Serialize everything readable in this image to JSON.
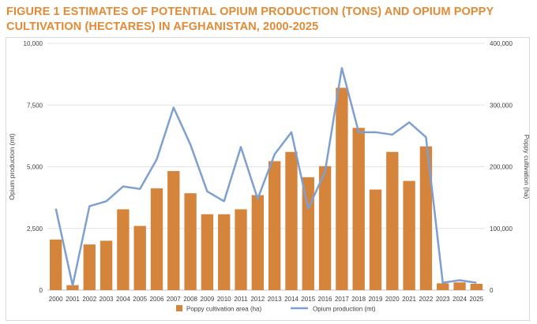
{
  "figure": {
    "title": "FIGURE 1 ESTIMATES OF POTENTIAL OPIUM PRODUCTION (TONS) AND OPIUM POPPY CULTIVATION (HECTARES) IN AFGHANISTAN, 2000-2025"
  },
  "chart_data": {
    "type": "bar+line",
    "title": "FIGURE 1 ESTIMATES OF POTENTIAL OPIUM PRODUCTION (TONS) AND OPIUM POPPY CULTIVATION (HECTARES) IN AFGHANISTAN, 2000-2025",
    "categories": [
      "2000",
      "2001",
      "2002",
      "2003",
      "2004",
      "2005",
      "2006",
      "2007",
      "2008",
      "2009",
      "2010",
      "2011",
      "2012",
      "2013",
      "2014",
      "2015",
      "2016",
      "2017",
      "2018",
      "2019",
      "2020",
      "2021",
      "2022",
      "2023",
      "2024",
      "2025"
    ],
    "ylabel_left": "Opium production (mt)",
    "ylabel_right": "Poppy cultivation (ha)",
    "ylim_left": [
      0,
      10000
    ],
    "ylim_right": [
      0,
      400000
    ],
    "yticks_left": [
      "0",
      "2,500",
      "5,000",
      "7,500",
      "10,000"
    ],
    "yticks_right": [
      "0",
      "100,000",
      "200,000",
      "300,000",
      "400,000"
    ],
    "series": [
      {
        "name": "Poppy cultivation area (ha)",
        "type": "bar",
        "axis": "right",
        "color": "#d5843b",
        "values": [
          82000,
          8000,
          74000,
          80000,
          131000,
          104000,
          165000,
          193000,
          157000,
          123000,
          123000,
          131000,
          154000,
          209000,
          224000,
          183000,
          201000,
          328000,
          263000,
          163000,
          224000,
          177000,
          233000,
          11000,
          12500,
          10200
        ]
      },
      {
        "name": "Opium production (mt)",
        "type": "line",
        "axis": "left",
        "color": "#7ea0d1",
        "values": [
          3300,
          185,
          3400,
          3600,
          4200,
          4100,
          5300,
          7400,
          5900,
          4000,
          3600,
          5800,
          3700,
          5500,
          6400,
          3300,
          4800,
          9000,
          6400,
          6400,
          6300,
          6800,
          6200,
          300,
          400,
          300
        ]
      }
    ],
    "legend": {
      "position": "bottom"
    }
  }
}
